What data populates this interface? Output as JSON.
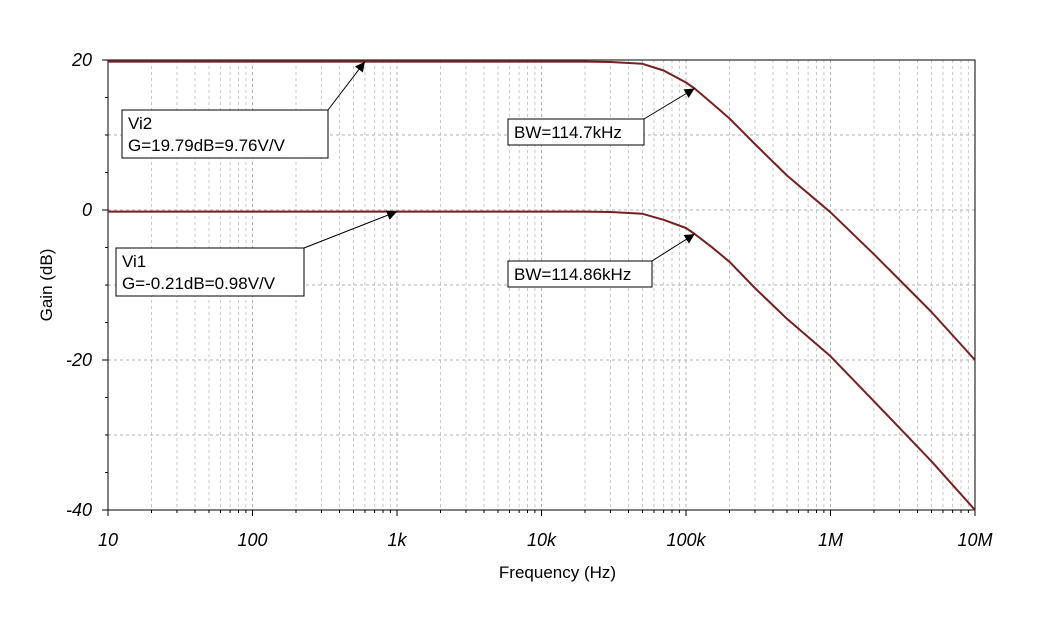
{
  "chart_data": {
    "type": "line",
    "xlabel": "Frequency (Hz)",
    "ylabel": "Gain (dB)",
    "xscale": "log",
    "xlim": [
      10,
      10000000
    ],
    "ylim": [
      -40,
      20
    ],
    "grid": true,
    "x_ticks": [
      {
        "value": 10,
        "label": "10"
      },
      {
        "value": 100,
        "label": "100"
      },
      {
        "value": 1000,
        "label": "1k"
      },
      {
        "value": 10000,
        "label": "10k"
      },
      {
        "value": 100000,
        "label": "100k"
      },
      {
        "value": 1000000,
        "label": "1M"
      },
      {
        "value": 10000000,
        "label": "10M"
      }
    ],
    "y_ticks": [
      {
        "value": 20,
        "label": "20"
      },
      {
        "value": 0,
        "label": "0"
      },
      {
        "value": -20,
        "label": "-20"
      },
      {
        "value": -40,
        "label": "-40"
      }
    ],
    "series": [
      {
        "color": "#7a1f1f",
        "x": [
          10,
          100,
          1000,
          10000,
          20000,
          30000,
          50000,
          70000,
          100000,
          114700,
          150000,
          200000,
          300000,
          500000,
          1000000,
          2000000,
          5000000,
          10000000
        ],
        "y": [
          19.79,
          19.79,
          19.79,
          19.79,
          19.78,
          19.74,
          19.5,
          18.6,
          17.0,
          16.2,
          14.3,
          12.2,
          8.8,
          4.6,
          -0.3,
          -5.9,
          -13.6,
          -20.0
        ]
      },
      {
        "color": "#7a1f1f",
        "x": [
          10,
          100,
          1000,
          10000,
          20000,
          30000,
          50000,
          70000,
          100000,
          114860,
          150000,
          200000,
          300000,
          500000,
          1000000,
          2000000,
          5000000,
          10000000
        ],
        "y": [
          -0.21,
          -0.21,
          -0.21,
          -0.21,
          -0.22,
          -0.27,
          -0.5,
          -1.3,
          -2.4,
          -3.2,
          -4.9,
          -6.9,
          -10.4,
          -14.5,
          -19.5,
          -25.5,
          -33.5,
          -40.0
        ]
      }
    ],
    "annotations": [
      {
        "lines": [
          "Vi2",
          "G=19.79dB=9.76V/V"
        ],
        "x": 600,
        "y": 19.79
      },
      {
        "lines": [
          "BW=114.7kHz"
        ],
        "x": 114700,
        "y": 16.2
      },
      {
        "lines": [
          "Vi1",
          "G=-0.21dB=0.98V/V"
        ],
        "x": 1000,
        "y": -0.21
      },
      {
        "lines": [
          "BW=114.86kHz"
        ],
        "x": 114860,
        "y": -3.2
      }
    ]
  }
}
